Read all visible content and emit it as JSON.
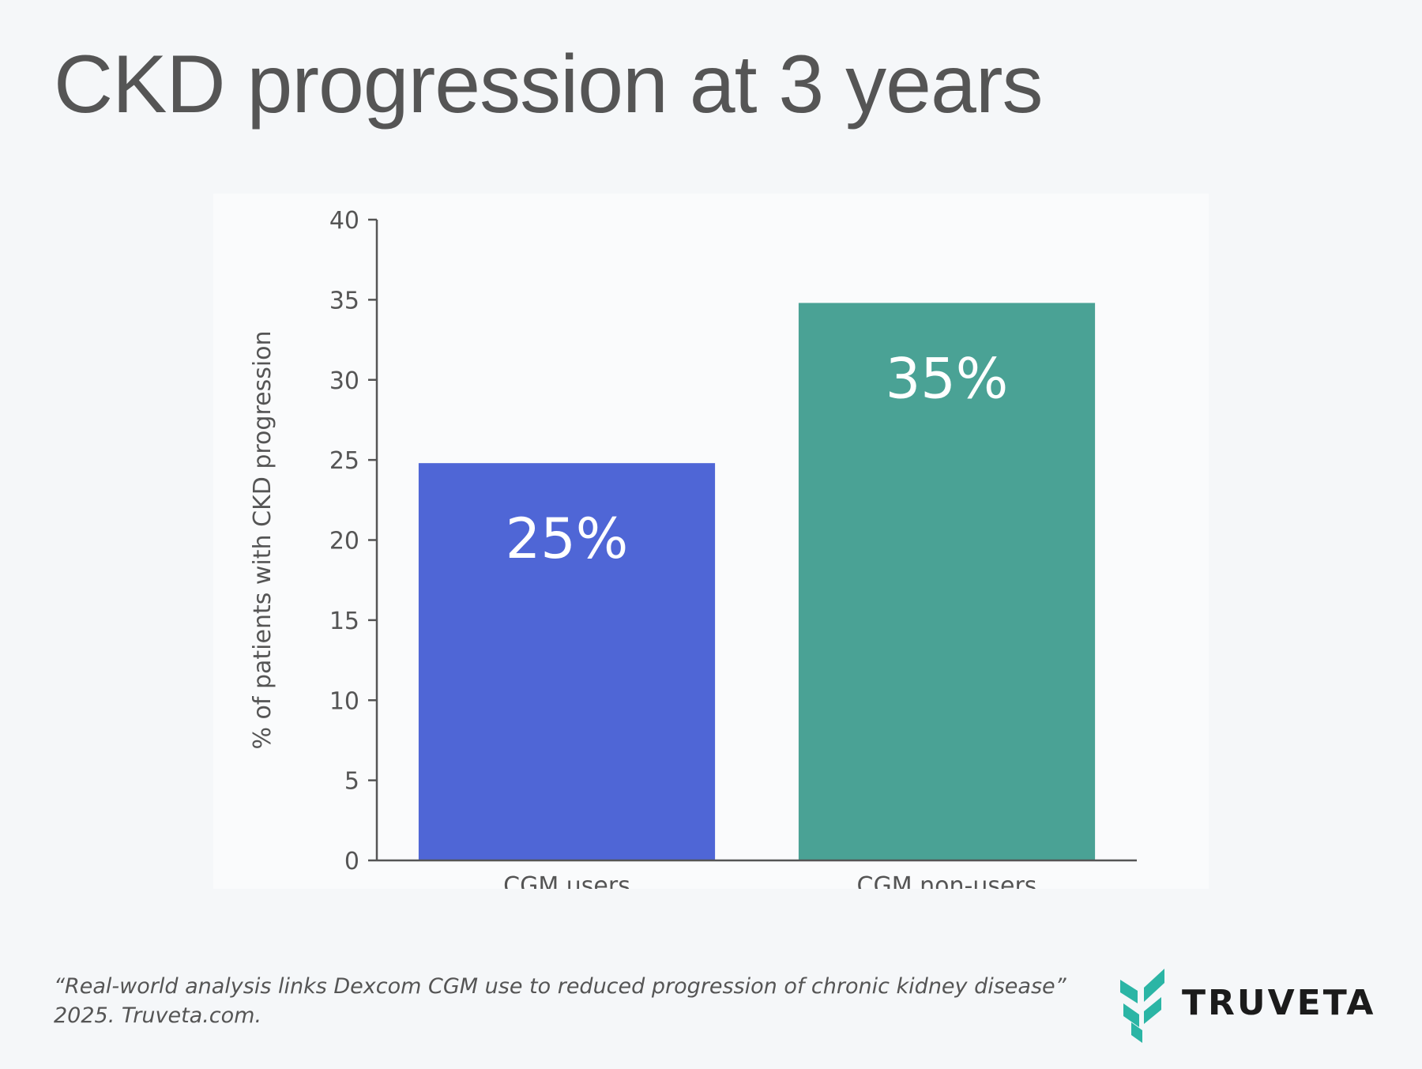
{
  "title": "CKD progression at 3 years",
  "citation": {
    "line1": "“Real-world analysis links Dexcom CGM use to reduced progression of chronic kidney disease”",
    "line2": "2025. Truveta.com."
  },
  "logo": {
    "text": "TRUVETA",
    "mark_icon": "truveta-leaf-icon",
    "mark_color": "#2bb5a5"
  },
  "chart_data": {
    "type": "bar",
    "categories": [
      "CGM users",
      "CGM non-users"
    ],
    "values": [
      24.8,
      34.8
    ],
    "data_labels": [
      "25%",
      "35%"
    ],
    "colors": [
      "#4f66d6",
      "#4aa295"
    ],
    "ylabel": "% of patients with CKD progression",
    "ylim": [
      0,
      40
    ],
    "yticks": [
      0,
      5,
      10,
      15,
      20,
      25,
      30,
      35,
      40
    ],
    "grid": false,
    "legend": "none"
  }
}
